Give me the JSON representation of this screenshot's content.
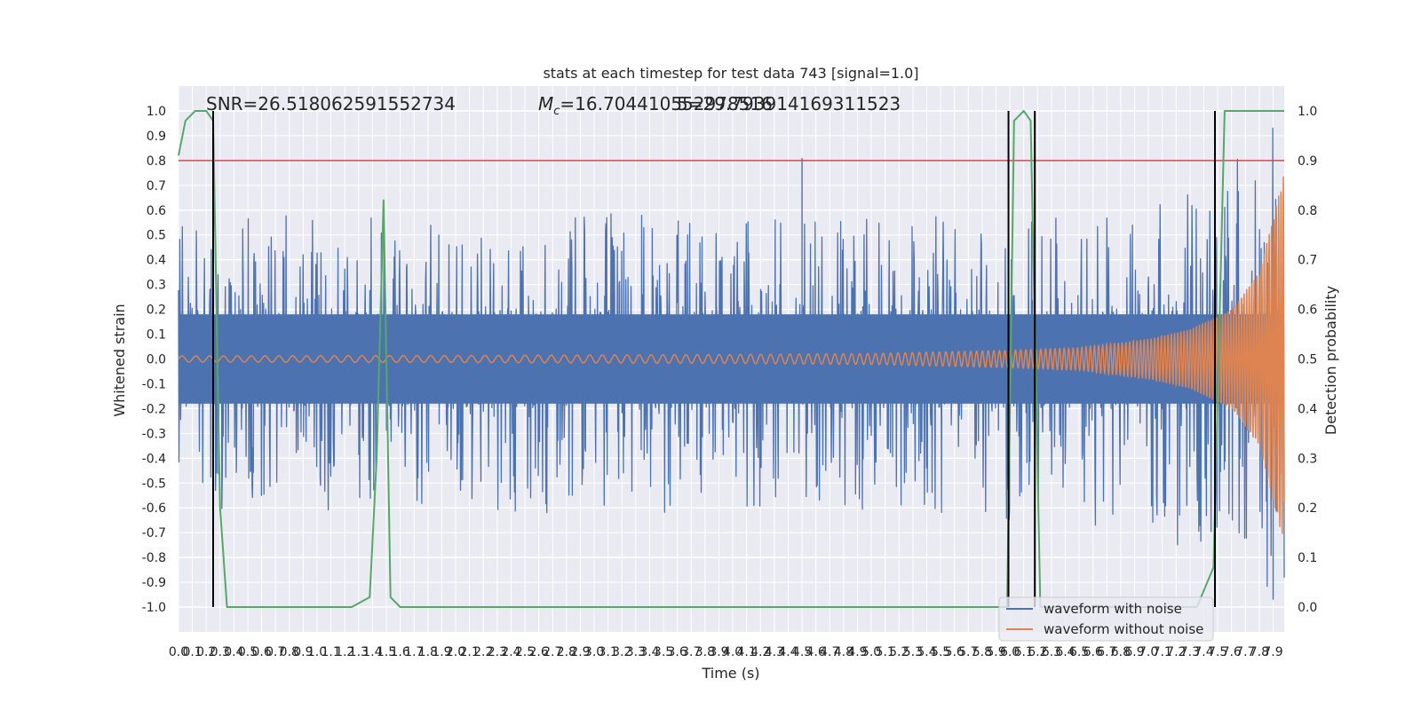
{
  "chart_data": {
    "type": "line",
    "title": "stats at each timestep for test data 743 [signal=1.0]",
    "xlabel": "Time (s)",
    "ylabel": "Whitened strain",
    "y2label": "Detection probability",
    "xlim": [
      0.0,
      7.98
    ],
    "ylim": [
      -1.1,
      1.1
    ],
    "y2lim": [
      -0.05,
      1.05
    ],
    "grid": true,
    "x_ticks": [
      0.0,
      0.1,
      0.2,
      0.3,
      0.4,
      0.5,
      0.6,
      0.7,
      0.8,
      0.9,
      1.0,
      1.1,
      1.2,
      1.3,
      1.4,
      1.5,
      1.6,
      1.7,
      1.8,
      1.9,
      2.0,
      2.1,
      2.2,
      2.3,
      2.4,
      2.5,
      2.6,
      2.7,
      2.8,
      2.9,
      3.0,
      3.1,
      3.2,
      3.3,
      3.4,
      3.5,
      3.6,
      3.7,
      3.8,
      3.9,
      4.0,
      4.1,
      4.2,
      4.3,
      4.4,
      4.5,
      4.6,
      4.7,
      4.8,
      4.9,
      5.0,
      5.1,
      5.2,
      5.3,
      5.4,
      5.5,
      5.6,
      5.7,
      5.8,
      5.9,
      6.0,
      6.1,
      6.2,
      6.3,
      6.4,
      6.5,
      6.6,
      6.7,
      6.8,
      6.9,
      7.0,
      7.1,
      7.2,
      7.3,
      7.4,
      7.5,
      7.6,
      7.7,
      7.8,
      7.9
    ],
    "y_ticks": [
      -1.0,
      -0.9,
      -0.8,
      -0.7,
      -0.6,
      -0.5,
      -0.4,
      -0.3,
      -0.2,
      -0.1,
      0.0,
      0.1,
      0.2,
      0.3,
      0.4,
      0.5,
      0.6,
      0.7,
      0.8,
      0.9,
      1.0
    ],
    "y2_ticks": [
      0.0,
      0.1,
      0.2,
      0.3,
      0.4,
      0.5,
      0.6,
      0.7,
      0.8,
      0.9,
      1.0
    ],
    "annotations": {
      "snr": "SNR=26.518062591552734",
      "mc_prefix": "M",
      "mc_subscript": "c",
      "mc_value": "=16.704410552978516",
      "overlap_value": "5=29.793914169311523"
    },
    "legend": {
      "placement": "lower-right",
      "entries": [
        "waveform with noise",
        "waveform without noise"
      ]
    },
    "colors": {
      "noisy": "#4c72b0",
      "clean": "#dd8452",
      "prob": "#55a868",
      "threshold": "#c44e52",
      "vlines": "#000000",
      "background": "#eaeaf2",
      "grid": "#ffffff"
    },
    "threshold": {
      "axis": "y2",
      "value": 0.9
    },
    "vlines": [
      0.25,
      5.99,
      6.18,
      7.48
    ],
    "series": [
      {
        "name": "waveform with noise",
        "kind": "noise-envelope",
        "envelope_x": [
          0.0,
          1.0,
          2.0,
          3.0,
          4.0,
          5.0,
          6.0,
          7.0,
          7.5,
          7.98
        ],
        "envelope_upper": [
          0.55,
          0.6,
          0.55,
          0.6,
          0.55,
          0.6,
          0.58,
          0.6,
          0.75,
          1.0
        ],
        "envelope_lower": [
          -0.6,
          -0.65,
          -0.6,
          -0.65,
          -0.6,
          -0.62,
          -0.65,
          -0.7,
          -0.85,
          -0.95
        ],
        "peak_max": 0.81,
        "peak_max_x": 4.5,
        "peak_min": -0.97,
        "peak_min_x": 7.9
      },
      {
        "name": "waveform without noise",
        "kind": "chirp",
        "amplitude_x": [
          0.0,
          2.0,
          4.0,
          5.0,
          6.0,
          6.5,
          7.0,
          7.3,
          7.6,
          7.8,
          7.98
        ],
        "amplitude": [
          0.012,
          0.014,
          0.018,
          0.022,
          0.035,
          0.045,
          0.08,
          0.12,
          0.2,
          0.35,
          0.75
        ],
        "cycles_start_per_s": 10,
        "cycles_end_per_s": 60
      },
      {
        "name": "detection probability",
        "axis": "y2",
        "x": [
          0.0,
          0.05,
          0.12,
          0.2,
          0.25,
          0.3,
          0.35,
          0.4,
          1.25,
          1.38,
          1.43,
          1.48,
          1.53,
          1.6,
          1.7,
          1.8,
          2.5,
          3.5,
          5.98,
          6.03,
          6.1,
          6.15,
          6.22,
          6.3,
          7.35,
          7.47,
          7.55,
          7.98
        ],
        "values": [
          0.91,
          0.98,
          1.0,
          1.0,
          0.98,
          0.2,
          0.0,
          0.0,
          0.0,
          0.02,
          0.3,
          0.82,
          0.02,
          0.0,
          0.0,
          0.0,
          0.0,
          0.0,
          0.0,
          0.98,
          1.0,
          0.98,
          0.0,
          0.0,
          0.0,
          0.08,
          1.0,
          1.0
        ]
      }
    ]
  }
}
